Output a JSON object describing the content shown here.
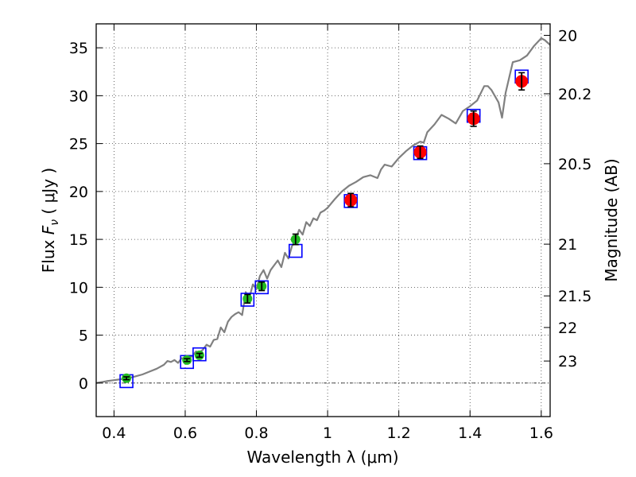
{
  "chart_data": {
    "type": "scatter",
    "xlabel": "Wavelength  λ (μm)",
    "ylabel": "Flux  F_ν  ( μJy )",
    "ylabel_parts": {
      "prefix": "Flux  ",
      "symbol": "F",
      "subscript": "ν",
      "suffix": "  ( μJy )"
    },
    "ylabel_right": "Magnitude (AB)",
    "xlim": [
      0.35,
      1.625
    ],
    "ylim": [
      -3.5,
      37.5
    ],
    "grid": true,
    "x_ticks": [
      0.4,
      0.6,
      0.8,
      1.0,
      1.2,
      1.4,
      1.6
    ],
    "x_tick_labels": [
      "0.4",
      "0.6",
      "0.8",
      "1",
      "1.2",
      "1.4",
      "1.6"
    ],
    "y_ticks": [
      0,
      5,
      10,
      15,
      20,
      25,
      30,
      35
    ],
    "y_tick_labels": [
      "0",
      "5",
      "10",
      "15",
      "20",
      "25",
      "30",
      "35"
    ],
    "right_ticks": [
      {
        "label": "20",
        "flux": 36.3
      },
      {
        "label": "20.2",
        "flux": 30.2
      },
      {
        "label": "20.5",
        "flux": 22.9
      },
      {
        "label": "21",
        "flux": 14.5
      },
      {
        "label": "21.5",
        "flux": 9.1
      },
      {
        "label": "22",
        "flux": 5.8
      },
      {
        "label": "23",
        "flux": 2.3
      }
    ],
    "colors": {
      "model": "#808080",
      "model_points": "#0000ff",
      "optical": "#22bb22",
      "nir": "#ff0000",
      "errorbar": "#000000"
    },
    "series": [
      {
        "kind": "model_spectrum",
        "x": [
          0.35,
          0.38,
          0.4,
          0.42,
          0.44,
          0.46,
          0.48,
          0.5,
          0.52,
          0.54,
          0.55,
          0.56,
          0.57,
          0.58,
          0.59,
          0.6,
          0.62,
          0.63,
          0.64,
          0.65,
          0.66,
          0.67,
          0.68,
          0.69,
          0.7,
          0.71,
          0.72,
          0.73,
          0.74,
          0.75,
          0.76,
          0.77,
          0.78,
          0.79,
          0.8,
          0.81,
          0.82,
          0.83,
          0.84,
          0.85,
          0.86,
          0.87,
          0.88,
          0.89,
          0.9,
          0.91,
          0.92,
          0.93,
          0.94,
          0.95,
          0.96,
          0.97,
          0.98,
          0.99,
          1.0,
          1.02,
          1.04,
          1.06,
          1.08,
          1.1,
          1.12,
          1.14,
          1.15,
          1.16,
          1.18,
          1.2,
          1.22,
          1.24,
          1.26,
          1.27,
          1.28,
          1.3,
          1.32,
          1.34,
          1.36,
          1.38,
          1.4,
          1.42,
          1.44,
          1.45,
          1.46,
          1.48,
          1.49,
          1.5,
          1.52,
          1.54,
          1.56,
          1.58,
          1.6,
          1.61,
          1.625
        ],
        "values": [
          0.0,
          0.2,
          0.3,
          0.4,
          0.5,
          0.7,
          0.9,
          1.2,
          1.5,
          1.9,
          2.3,
          2.2,
          2.4,
          2.1,
          2.6,
          2.5,
          2.8,
          3.3,
          3.2,
          3.5,
          4.0,
          3.8,
          4.5,
          4.6,
          5.8,
          5.3,
          6.4,
          6.9,
          7.2,
          7.4,
          7.1,
          9.5,
          8.9,
          10.3,
          9.8,
          11.2,
          11.8,
          10.9,
          11.8,
          12.3,
          12.8,
          12.1,
          13.6,
          13.0,
          14.3,
          15.0,
          16.0,
          15.5,
          16.8,
          16.4,
          17.2,
          17.0,
          17.8,
          18.0,
          18.3,
          19.2,
          20.0,
          20.6,
          21.0,
          21.5,
          21.7,
          21.4,
          22.3,
          22.8,
          22.6,
          23.5,
          24.2,
          24.8,
          25.2,
          25.1,
          26.2,
          27.0,
          28.0,
          27.6,
          27.1,
          28.4,
          28.9,
          29.5,
          31.0,
          31.0,
          30.6,
          29.3,
          27.7,
          30.3,
          33.5,
          33.7,
          34.2,
          35.2,
          36.0,
          35.8,
          35.3
        ]
      },
      {
        "kind": "model_photometry",
        "x": [
          0.435,
          0.605,
          0.64,
          0.775,
          0.815,
          0.91,
          1.065,
          1.26,
          1.41,
          1.545
        ],
        "values": [
          0.2,
          2.2,
          3.0,
          8.7,
          10.0,
          13.8,
          19.0,
          24.0,
          27.9,
          32.0
        ]
      },
      {
        "kind": "observed_optical",
        "x": [
          0.435,
          0.605,
          0.64,
          0.775,
          0.815,
          0.91
        ],
        "values": [
          0.5,
          2.4,
          2.9,
          8.8,
          10.1,
          15.0
        ],
        "errors": [
          0.15,
          0.15,
          0.2,
          0.45,
          0.45,
          0.55
        ]
      },
      {
        "kind": "observed_nir",
        "x": [
          1.065,
          1.26,
          1.41,
          1.545
        ],
        "values": [
          19.1,
          24.1,
          27.6,
          31.5
        ],
        "errors": [
          0.7,
          0.65,
          0.8,
          0.9
        ]
      }
    ]
  }
}
